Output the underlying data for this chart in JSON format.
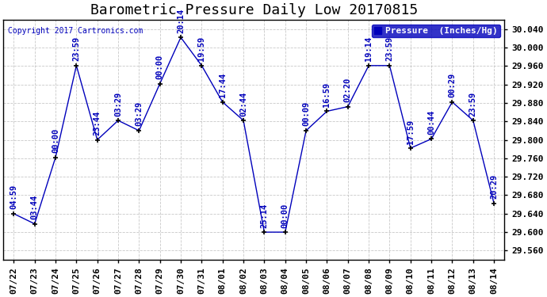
{
  "title": "Barometric Pressure Daily Low 20170815",
  "copyright": "Copyright 2017 Cartronics.com",
  "legend_label": "Pressure  (Inches/Hg)",
  "background_color": "#ffffff",
  "plot_bg_color": "#ffffff",
  "line_color": "#0000bb",
  "grid_color": "#bbbbbb",
  "dates": [
    "07/22",
    "07/23",
    "07/24",
    "07/25",
    "07/26",
    "07/27",
    "07/28",
    "07/29",
    "07/30",
    "07/31",
    "08/01",
    "08/02",
    "08/03",
    "08/04",
    "08/05",
    "08/06",
    "08/07",
    "08/08",
    "08/09",
    "08/10",
    "08/11",
    "08/12",
    "08/13",
    "08/14"
  ],
  "values": [
    29.64,
    29.618,
    29.762,
    29.961,
    29.8,
    29.842,
    29.82,
    29.922,
    30.022,
    29.961,
    29.882,
    29.842,
    29.6,
    29.6,
    29.82,
    29.862,
    29.872,
    29.961,
    29.961,
    29.782,
    29.802,
    29.882,
    29.842,
    29.662
  ],
  "times": [
    "04:59",
    "03:44",
    "00:00",
    "23:59",
    "23:44",
    "03:29",
    "03:29",
    "00:00",
    "20:14",
    "19:59",
    "17:44",
    "02:44",
    "25:14",
    "00:00",
    "00:09",
    "16:59",
    "02:20",
    "19:14",
    "23:59",
    "17:59",
    "00:44",
    "00:29",
    "23:59",
    "20:29"
  ],
  "ylim": [
    29.54,
    30.06
  ],
  "yticks": [
    29.56,
    29.6,
    29.64,
    29.68,
    29.72,
    29.76,
    29.8,
    29.84,
    29.88,
    29.92,
    29.96,
    30.0,
    30.04
  ],
  "title_fontsize": 13,
  "tick_fontsize": 8,
  "label_fontsize": 7.5,
  "legend_fontsize": 8
}
